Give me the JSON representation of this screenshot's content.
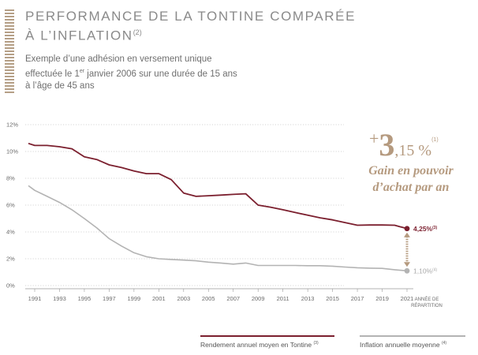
{
  "header": {
    "title_line1": "PERFORMANCE DE LA TONTINE COMPARÉE",
    "title_line2": "À L’INFLATION",
    "title_note": "(2)",
    "subtitle_line1": "Exemple d’une adhésion en versement unique",
    "subtitle_line2_pre": "effectuée le 1",
    "subtitle_line2_sup": "er",
    "subtitle_line2_post": " janvier 2006 sur une durée de 15 ans",
    "subtitle_line3": "à l’âge de 45 ans"
  },
  "callout": {
    "plus": "+",
    "integer": "3",
    "decimal": ",15",
    "unit": " %",
    "note": "(1)",
    "line1": "Gain en pouvoir",
    "line2": "d’achat par an"
  },
  "axis": {
    "x_note_line1": "ANNÉE DE",
    "x_note_line2": "RÉPARTITION"
  },
  "end_labels": {
    "tontine_value": "4,25%",
    "tontine_note": "(3)",
    "inflation_value": "1,10%",
    "inflation_note": "(4)"
  },
  "legend": {
    "tontine_label": "Rendement annuel moyen en Tontine",
    "tontine_note": "(3)",
    "inflation_label": "Inflation annuelle moyenne",
    "inflation_note": "(4)"
  },
  "colors": {
    "tontine": "#7b1f2e",
    "inflation": "#b3b3b3",
    "accent": "#b59a7f",
    "grid": "#c8c8c8"
  },
  "chart_data": {
    "type": "line",
    "x": [
      1990,
      1991,
      1992,
      1993,
      1994,
      1995,
      1996,
      1997,
      1998,
      1999,
      2000,
      2001,
      2002,
      2003,
      2004,
      2005,
      2006,
      2007,
      2008,
      2009,
      2010,
      2011,
      2012,
      2013,
      2014,
      2015,
      2016,
      2017,
      2018,
      2019,
      2020,
      2021
    ],
    "x_ticks": [
      1991,
      1993,
      1995,
      1997,
      1999,
      2001,
      2003,
      2005,
      2007,
      2009,
      2011,
      2013,
      2015,
      2017,
      2019,
      2021
    ],
    "y_ticks": [
      0,
      2,
      4,
      6,
      8,
      10,
      12
    ],
    "y_tick_labels": [
      "0%",
      "2%",
      "4%",
      "6%",
      "8%",
      "10%",
      "12%"
    ],
    "ylim": [
      0,
      12
    ],
    "grid": "horizontal dotted",
    "legend_position": "bottom",
    "series": [
      {
        "name": "Rendement annuel moyen en Tontine",
        "values": [
          10.6,
          10.45,
          10.45,
          10.35,
          10.2,
          9.6,
          9.4,
          9.0,
          8.8,
          8.55,
          8.35,
          8.35,
          7.9,
          6.9,
          6.65,
          6.7,
          6.75,
          6.8,
          6.85,
          6.0,
          5.85,
          5.65,
          5.45,
          5.25,
          5.05,
          4.9,
          4.7,
          4.5,
          4.52,
          4.52,
          4.5,
          4.25
        ]
      },
      {
        "name": "Inflation annuelle moyenne",
        "values": [
          7.45,
          7.1,
          6.65,
          6.2,
          5.65,
          5.0,
          4.3,
          3.5,
          2.95,
          2.45,
          2.15,
          2.0,
          1.95,
          1.9,
          1.85,
          1.75,
          1.68,
          1.6,
          1.68,
          1.5,
          1.5,
          1.5,
          1.5,
          1.48,
          1.48,
          1.45,
          1.38,
          1.33,
          1.3,
          1.28,
          1.18,
          1.1
        ]
      }
    ]
  }
}
